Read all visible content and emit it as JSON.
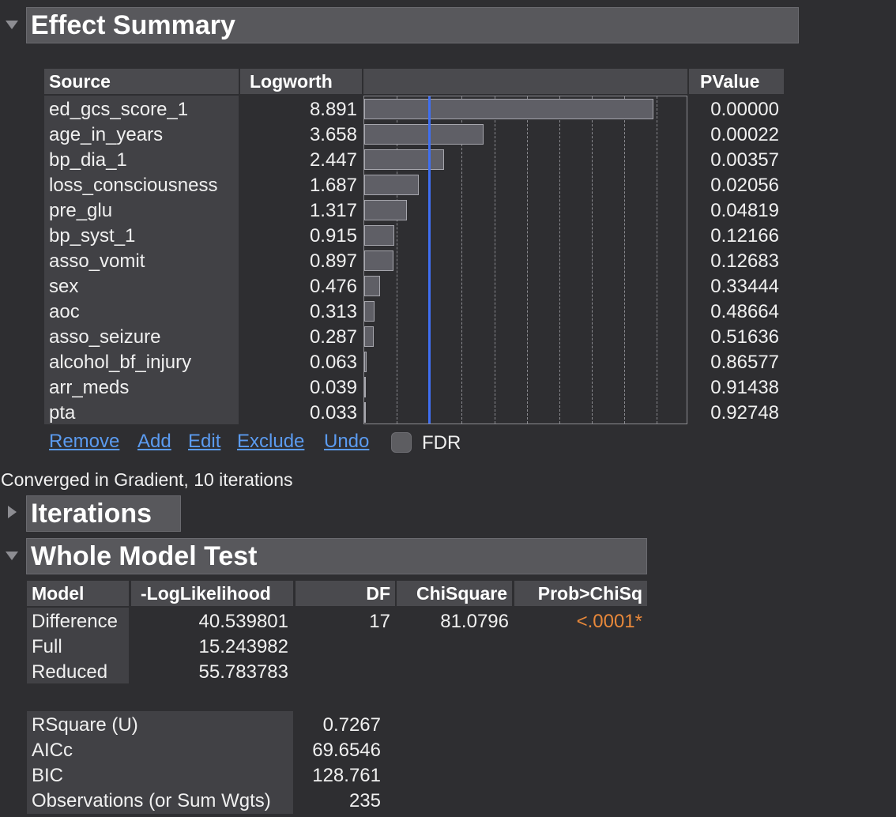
{
  "effect_summary": {
    "title": "Effect Summary",
    "columns": {
      "source": "Source",
      "logworth": "Logworth",
      "pvalue": "PValue"
    },
    "reference_line_logworth": 2,
    "logworth_axis_max": 10,
    "rows": [
      {
        "source": "ed_gcs_score_1",
        "logworth": "8.891",
        "pvalue": "0.00000"
      },
      {
        "source": "age_in_years",
        "logworth": "3.658",
        "pvalue": "0.00022"
      },
      {
        "source": "bp_dia_1",
        "logworth": "2.447",
        "pvalue": "0.00357"
      },
      {
        "source": "loss_consciousness",
        "logworth": "1.687",
        "pvalue": "0.02056"
      },
      {
        "source": "pre_glu",
        "logworth": "1.317",
        "pvalue": "0.04819"
      },
      {
        "source": "bp_syst_1",
        "logworth": "0.915",
        "pvalue": "0.12166"
      },
      {
        "source": "asso_vomit",
        "logworth": "0.897",
        "pvalue": "0.12683"
      },
      {
        "source": "sex",
        "logworth": "0.476",
        "pvalue": "0.33444"
      },
      {
        "source": "aoc",
        "logworth": "0.313",
        "pvalue": "0.48664"
      },
      {
        "source": "asso_seizure",
        "logworth": "0.287",
        "pvalue": "0.51636"
      },
      {
        "source": "alcohol_bf_injury",
        "logworth": "0.063",
        "pvalue": "0.86577"
      },
      {
        "source": "arr_meds",
        "logworth": "0.039",
        "pvalue": "0.91438"
      },
      {
        "source": "pta",
        "logworth": "0.033",
        "pvalue": "0.92748"
      }
    ],
    "actions": {
      "remove": "Remove",
      "add": "Add",
      "edit": "Edit",
      "exclude": "Exclude",
      "undo": "Undo"
    },
    "fdr_label": "FDR",
    "fdr_checked": false
  },
  "status_text": "Converged in Gradient, 10 iterations",
  "iterations": {
    "title": "Iterations"
  },
  "whole_model_test": {
    "title": "Whole Model Test",
    "columns": {
      "model": "Model",
      "loglik": "-LogLikelihood",
      "df": "DF",
      "chisq": "ChiSquare",
      "prob": "Prob>ChiSq"
    },
    "rows": [
      {
        "model": "Difference",
        "loglik": "40.539801",
        "df": "17",
        "chisq": "81.0796",
        "prob": "<.0001*"
      },
      {
        "model": "Full",
        "loglik": "15.243982",
        "df": "",
        "chisq": "",
        "prob": ""
      },
      {
        "model": "Reduced",
        "loglik": "55.783783",
        "df": "",
        "chisq": "",
        "prob": ""
      }
    ],
    "significant_color": "#e8883a",
    "stats": [
      {
        "label": "RSquare (U)",
        "value": "0.7267"
      },
      {
        "label": "AICc",
        "value": "69.6546"
      },
      {
        "label": "BIC",
        "value": "128.761"
      },
      {
        "label": "Observations (or Sum Wgts)",
        "value": "235"
      }
    ]
  }
}
